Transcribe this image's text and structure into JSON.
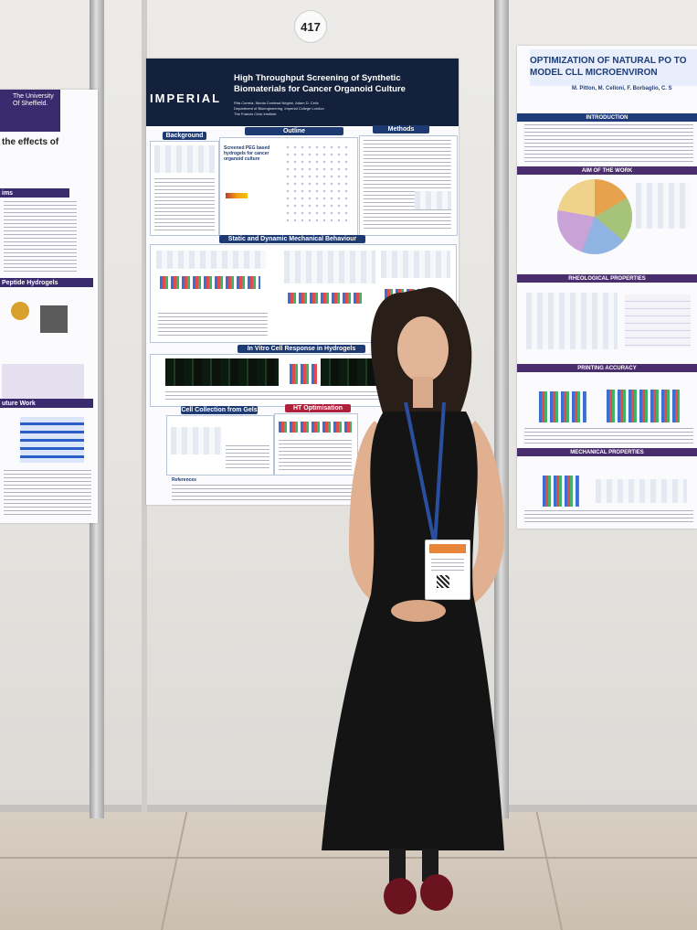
{
  "booth": {
    "number": "417"
  },
  "main_poster": {
    "logo": "IMPERIAL",
    "title": "High Throughput Screening of Synthetic Biomaterials for Cancer Organoid Culture",
    "authors": "Rita Correia, Nicola Contessi Negrini, Adam D. Celiz",
    "affiliations": [
      "Department of Bioengineering, Imperial College London",
      "The Francis Crick Institute"
    ],
    "sections": {
      "background": "Background",
      "outline": "Outline",
      "methods": "Methods",
      "mechanical": "Static and Dynamic Mechanical Behaviour",
      "cell_response": "In Vitro Cell Response in Hydrogels",
      "cell_collection": "Cell Collection from Gels",
      "ht": "HT Optimisation",
      "references": "References"
    },
    "outline_text": "Screened PEG based hydrogels for cancer organoid culture"
  },
  "right_poster": {
    "title": "OPTIMIZATION OF NATURAL PO TO MODEL CLL MICROENVIRON",
    "authors": "M. Pitton, M. Celloni, F. Borbaglio, C. S",
    "sections": {
      "intro": "INTRODUCTION",
      "aim": "AIM OF THE WORK",
      "rheo": "RHEOLOGICAL PROPERTIES",
      "printing": "PRINTING ACCURACY",
      "mech": "MECHANICAL PROPERTIES"
    }
  },
  "left_poster": {
    "university": "The University Of Sheffield.",
    "title_fragment": "the effects of",
    "sections": {
      "aims": "ims",
      "peptide": "Peptide Hydrogels",
      "future": "uture Work"
    }
  },
  "colors": {
    "poster_header": "#14213d",
    "section_blue": "#1e3a73",
    "dress": "#141414",
    "lanyard": "#2a4fa0",
    "shoes": "#6b1420"
  }
}
